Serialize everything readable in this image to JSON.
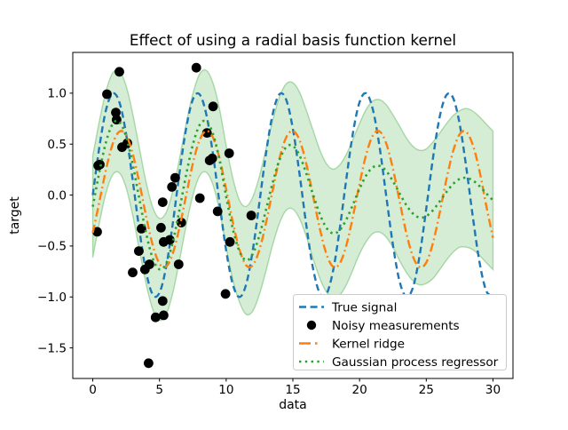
{
  "chart_data": {
    "type": "line",
    "title": "Effect of using a radial basis function kernel",
    "xlabel": "data",
    "ylabel": "target",
    "xlim": [
      -1.5,
      31.5
    ],
    "ylim": [
      -1.8,
      1.4
    ],
    "grid": false,
    "legend_location": "lower right",
    "xticks": [
      0,
      5,
      10,
      15,
      20,
      25,
      30
    ],
    "xtick_labels": [
      "0",
      "5",
      "10",
      "15",
      "20",
      "25",
      "30"
    ],
    "yticks": [
      1.0,
      0.5,
      0.0,
      -0.5,
      -1.0,
      -1.5
    ],
    "ytick_labels": [
      "1.0",
      "0.5",
      "0.0",
      "−0.5",
      "−1.0",
      "−1.5"
    ],
    "x_start": 0,
    "x_step": 0.5,
    "series": [
      {
        "name": "True signal",
        "style": "dashed",
        "color": "#1f77b4",
        "values": [
          0,
          0.479,
          0.841,
          0.997,
          0.909,
          0.599,
          0.141,
          -0.351,
          -0.757,
          -0.978,
          -0.959,
          -0.706,
          -0.279,
          0.215,
          0.657,
          0.938,
          0.989,
          0.798,
          0.412,
          -0.075,
          -0.544,
          -0.88,
          -1.0,
          -0.875,
          -0.537,
          -0.066,
          0.42,
          0.804,
          0.991,
          0.935,
          0.65,
          0.208,
          -0.288,
          -0.711,
          -0.961,
          -0.976,
          -0.751,
          -0.345,
          0.15,
          0.606,
          0.913,
          0.998,
          0.837,
          0.472,
          -0.009,
          -0.487,
          -0.846,
          -0.997,
          -0.906,
          -0.594,
          -0.132,
          0.359,
          0.763,
          0.979,
          0.956,
          0.7,
          0.271,
          -0.222,
          -0.664,
          -0.94,
          -0.988
        ]
      },
      {
        "name": "Kernel ridge",
        "style": "dashdot",
        "color": "#ff7f0e",
        "values": [
          -0.373,
          -0.06,
          0.257,
          0.505,
          0.624,
          0.588,
          0.403,
          0.114,
          -0.211,
          -0.496,
          -0.673,
          -0.701,
          -0.573,
          -0.319,
          -0.002,
          0.31,
          0.538,
          0.629,
          0.568,
          0.363,
          0.057,
          -0.268,
          -0.537,
          -0.69,
          -0.688,
          -0.534,
          -0.266,
          0.056,
          0.363,
          0.566,
          0.629,
          0.54,
          0.312,
          0.0,
          -0.319,
          -0.573,
          -0.701,
          -0.674,
          -0.498,
          -0.214,
          0.112,
          0.401,
          0.586,
          0.625,
          0.507,
          0.261,
          -0.057,
          -0.371,
          -0.604,
          -0.707,
          -0.662,
          -0.472,
          -0.181,
          0.145,
          0.426,
          0.597,
          0.619,
          0.488,
          0.232,
          -0.105,
          -0.42
        ]
      },
      {
        "name": "Gaussian process regressor",
        "style": "dotted",
        "color": "#2ca02c",
        "values": [
          -0.114,
          0.232,
          0.525,
          0.7,
          0.717,
          0.572,
          0.297,
          -0.045,
          -0.376,
          -0.624,
          -0.729,
          -0.671,
          -0.461,
          -0.145,
          0.202,
          0.494,
          0.686,
          0.724,
          0.604,
          0.347,
          -0.013,
          -0.335,
          -0.553,
          -0.641,
          -0.577,
          -0.392,
          -0.138,
          0.129,
          0.346,
          0.471,
          0.483,
          0.389,
          0.216,
          0.011,
          -0.181,
          -0.319,
          -0.376,
          -0.346,
          -0.243,
          -0.095,
          0.063,
          0.194,
          0.273,
          0.286,
          0.236,
          0.137,
          0.017,
          -0.098,
          -0.182,
          -0.221,
          -0.207,
          -0.149,
          -0.064,
          0.028,
          0.108,
          0.158,
          0.169,
          0.143,
          0.087,
          0.017,
          -0.052
        ]
      }
    ],
    "uncertainty_band": {
      "name": "GPR confidence band",
      "attached_to": "Gaussian process regressor",
      "fill_color": "rgba(44,160,44,0.2)",
      "edge_color": "rgba(44,160,44,0.35)",
      "std": [
        0.5,
        0.5,
        0.5,
        0.5,
        0.5,
        0.5,
        0.5,
        0.5,
        0.5,
        0.5,
        0.5,
        0.5,
        0.5,
        0.5,
        0.5,
        0.5,
        0.5,
        0.5,
        0.5,
        0.5,
        0.5,
        0.5,
        0.5,
        0.53,
        0.56,
        0.58,
        0.6,
        0.61,
        0.62,
        0.62,
        0.62,
        0.62,
        0.62,
        0.63,
        0.63,
        0.63,
        0.63,
        0.64,
        0.64,
        0.64,
        0.64,
        0.65,
        0.65,
        0.65,
        0.65,
        0.65,
        0.66,
        0.66,
        0.66,
        0.66,
        0.66,
        0.67,
        0.67,
        0.67,
        0.67,
        0.67,
        0.68,
        0.68,
        0.68,
        0.68,
        0.68
      ]
    },
    "scatter": {
      "name": "Noisy measurements",
      "color": "#000000",
      "marker_radius": 5.4,
      "points": [
        [
          0.33,
          -0.36
        ],
        [
          0.4,
          0.29
        ],
        [
          0.53,
          0.3
        ],
        [
          1.06,
          0.99
        ],
        [
          1.73,
          0.81
        ],
        [
          1.79,
          0.74
        ],
        [
          1.99,
          1.21
        ],
        [
          2.19,
          0.47
        ],
        [
          2.59,
          0.51
        ],
        [
          2.99,
          -0.76
        ],
        [
          3.45,
          -0.55
        ],
        [
          3.65,
          -0.33
        ],
        [
          3.91,
          -0.73
        ],
        [
          4.18,
          -1.65
        ],
        [
          4.25,
          -0.68
        ],
        [
          4.71,
          -1.2
        ],
        [
          5.11,
          -0.32
        ],
        [
          5.24,
          -0.07
        ],
        [
          5.24,
          -1.04
        ],
        [
          5.31,
          -0.46
        ],
        [
          5.31,
          -1.18
        ],
        [
          5.77,
          -0.44
        ],
        [
          5.93,
          0.08
        ],
        [
          6.18,
          0.17
        ],
        [
          6.44,
          -0.68
        ],
        [
          6.64,
          -0.27
        ],
        [
          7.76,
          1.25
        ],
        [
          8.03,
          -0.03
        ],
        [
          8.56,
          0.61
        ],
        [
          8.76,
          0.34
        ],
        [
          8.96,
          0.36
        ],
        [
          9.02,
          0.87
        ],
        [
          9.36,
          -0.16
        ],
        [
          9.95,
          -0.97
        ],
        [
          10.22,
          0.41
        ],
        [
          10.28,
          -0.46
        ],
        [
          11.88,
          -0.2
        ]
      ]
    }
  },
  "legend": {
    "items": [
      {
        "label": "True signal",
        "style": "dashed",
        "color": "#1f77b4"
      },
      {
        "label": "Noisy measurements",
        "style": "scatter",
        "color": "#000000"
      },
      {
        "label": "Kernel ridge",
        "style": "dashdot",
        "color": "#ff7f0e"
      },
      {
        "label": "Gaussian process regressor",
        "style": "dotted",
        "color": "#2ca02c"
      }
    ]
  },
  "colors": {
    "true_signal": "#1f77b4",
    "kernel_ridge": "#ff7f0e",
    "gaussian_process": "#2ca02c",
    "measurements": "#000000",
    "band_fill": "rgba(44,160,44,0.2)",
    "legend_border": "#cccccc",
    "axis": "#000000"
  }
}
